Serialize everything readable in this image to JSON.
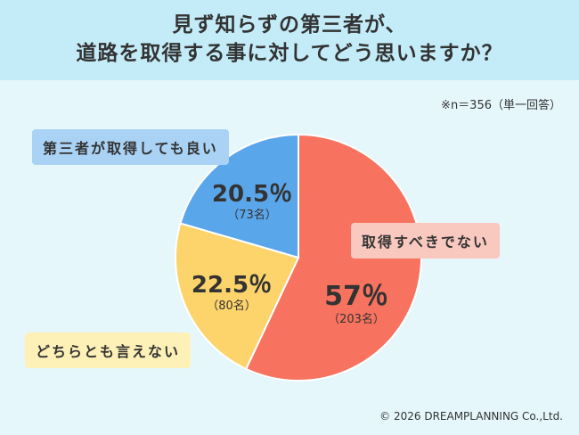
{
  "title_line1": "見ず知らずの第三者が、",
  "title_line2": "道路を取得する事に対してどう思いますか？",
  "note": "※n＝356（単一回答）",
  "copyright": "© 2026 DREAMPLANNING Co.,Ltd.",
  "chart_data": {
    "type": "pie",
    "n": 356,
    "start_angle_deg": 0,
    "direction": "clockwise",
    "slices": [
      {
        "label": "取得すべきでない",
        "percent": 57,
        "percent_text": "57％",
        "count": 203,
        "count_text": "（203名）",
        "color": "#f7735f"
      },
      {
        "label": "どちらとも言えない",
        "percent": 22.5,
        "percent_text": "22.5％",
        "count": 80,
        "count_text": "（80名）",
        "color": "#fdd46b"
      },
      {
        "label": "第三者が取得しても良い",
        "percent": 20.5,
        "percent_text": "20.5％",
        "count": 73,
        "count_text": "（73名）",
        "color": "#5aa6ea"
      }
    ]
  }
}
